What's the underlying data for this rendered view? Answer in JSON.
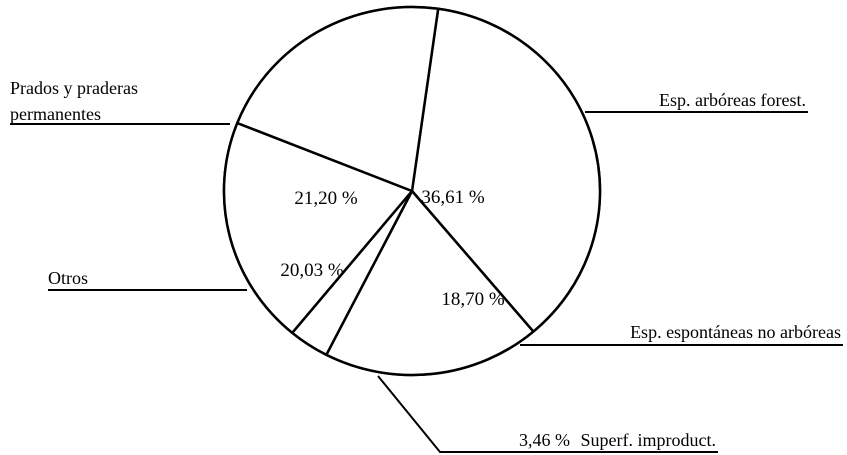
{
  "chart_data": {
    "type": "pie",
    "slices": [
      {
        "label": "Esp. arbóreas forest.",
        "value": 36.61,
        "value_label": "36,61 %"
      },
      {
        "label": "Esp. espontáneas no arbóreas",
        "value": 18.7,
        "value_label": "18,70 %"
      },
      {
        "label": "Superf. improduct.",
        "value": 3.46,
        "value_label": "3,46 %"
      },
      {
        "label": "Otros",
        "value": 20.03,
        "value_label": "20,03 %"
      },
      {
        "label": "Prados y praderas permanentes",
        "value": 21.2,
        "value_label": "21,20 %"
      }
    ],
    "legend": "outside labels with leader lines",
    "colors": {
      "fill": "#ffffff",
      "stroke": "#000000"
    }
  }
}
